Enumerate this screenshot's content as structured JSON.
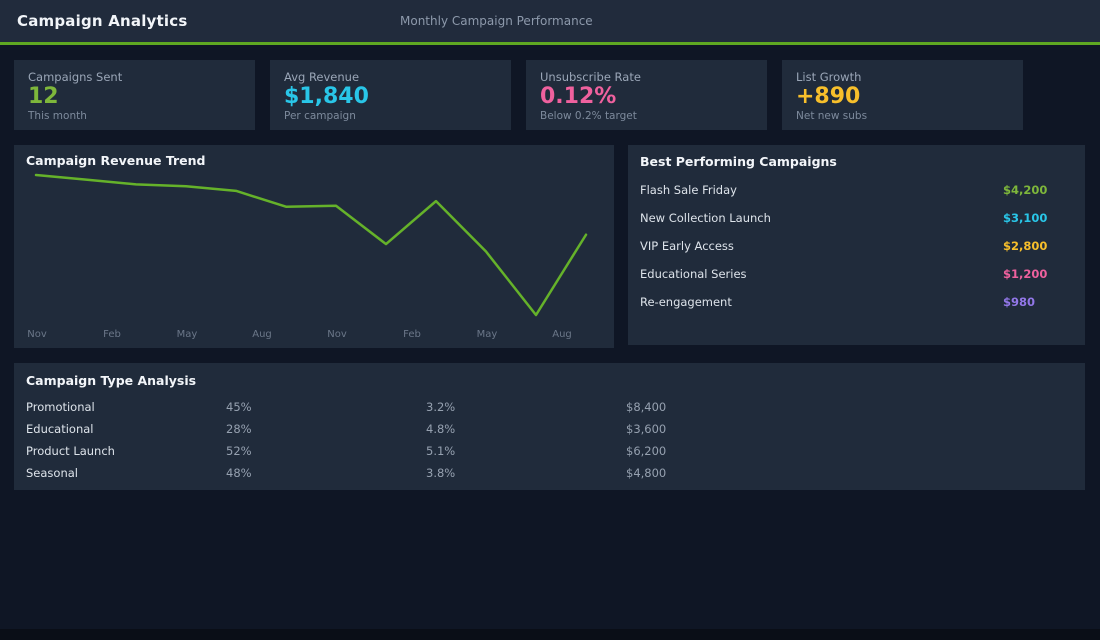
{
  "header": {
    "title": "Campaign Analytics",
    "subtitle": "Monthly Campaign Performance"
  },
  "stats": [
    {
      "label": "Campaigns Sent",
      "value": "12",
      "sub": "This month",
      "color": "#7eb73b"
    },
    {
      "label": "Avg Revenue",
      "value": "$1,840",
      "sub": "Per campaign",
      "color": "#29c6e8"
    },
    {
      "label": "Unsubscribe Rate",
      "value": "0.12%",
      "sub": "Below 0.2% target",
      "color": "#ef619e"
    },
    {
      "label": "List Growth",
      "value": "+890",
      "sub": "Net new subs",
      "color": "#f7bf2b"
    }
  ],
  "chart_data": {
    "type": "line",
    "title": "Campaign Revenue Trend",
    "x_tick_labels": [
      "Nov",
      "Feb",
      "May",
      "Aug",
      "Nov",
      "Feb",
      "May",
      "Aug"
    ],
    "values": [
      2400,
      2350,
      2300,
      2280,
      2230,
      2060,
      2070,
      1660,
      2120,
      1580,
      900,
      1760
    ],
    "ylabel": "",
    "xlabel": "",
    "ylim": [
      900,
      2400
    ],
    "grid": false,
    "legend_position": "none",
    "line_color": "#65b22a",
    "tick_label_color": "#6b7789"
  },
  "best_campaigns": {
    "title": "Best Performing Campaigns",
    "items": [
      {
        "name": "Flash Sale Friday",
        "value": "$4,200",
        "color": "#7eb73b"
      },
      {
        "name": "New Collection Launch",
        "value": "$3,100",
        "color": "#29c6e8"
      },
      {
        "name": "VIP Early Access",
        "value": "$2,800",
        "color": "#f7bf2b"
      },
      {
        "name": "Educational Series",
        "value": "$1,200",
        "color": "#ef619e"
      },
      {
        "name": "Re-engagement",
        "value": "$980",
        "color": "#9277e8"
      }
    ]
  },
  "type_analysis": {
    "title": "Campaign Type Analysis",
    "rows": [
      {
        "name": "Promotional",
        "col2": "45%",
        "col3": "3.2%",
        "col4": "$8,400"
      },
      {
        "name": "Educational",
        "col2": "28%",
        "col3": "4.8%",
        "col4": "$3,600"
      },
      {
        "name": "Product Launch",
        "col2": "52%",
        "col3": "5.1%",
        "col4": "$6,200"
      },
      {
        "name": "Seasonal",
        "col2": "48%",
        "col3": "3.8%",
        "col4": "$4,800"
      }
    ]
  },
  "colors": {
    "page_bg": "#0f1625",
    "header_bg": "#212b3c",
    "panel_bg": "#202b3b",
    "accent_green": "#5fa822"
  }
}
